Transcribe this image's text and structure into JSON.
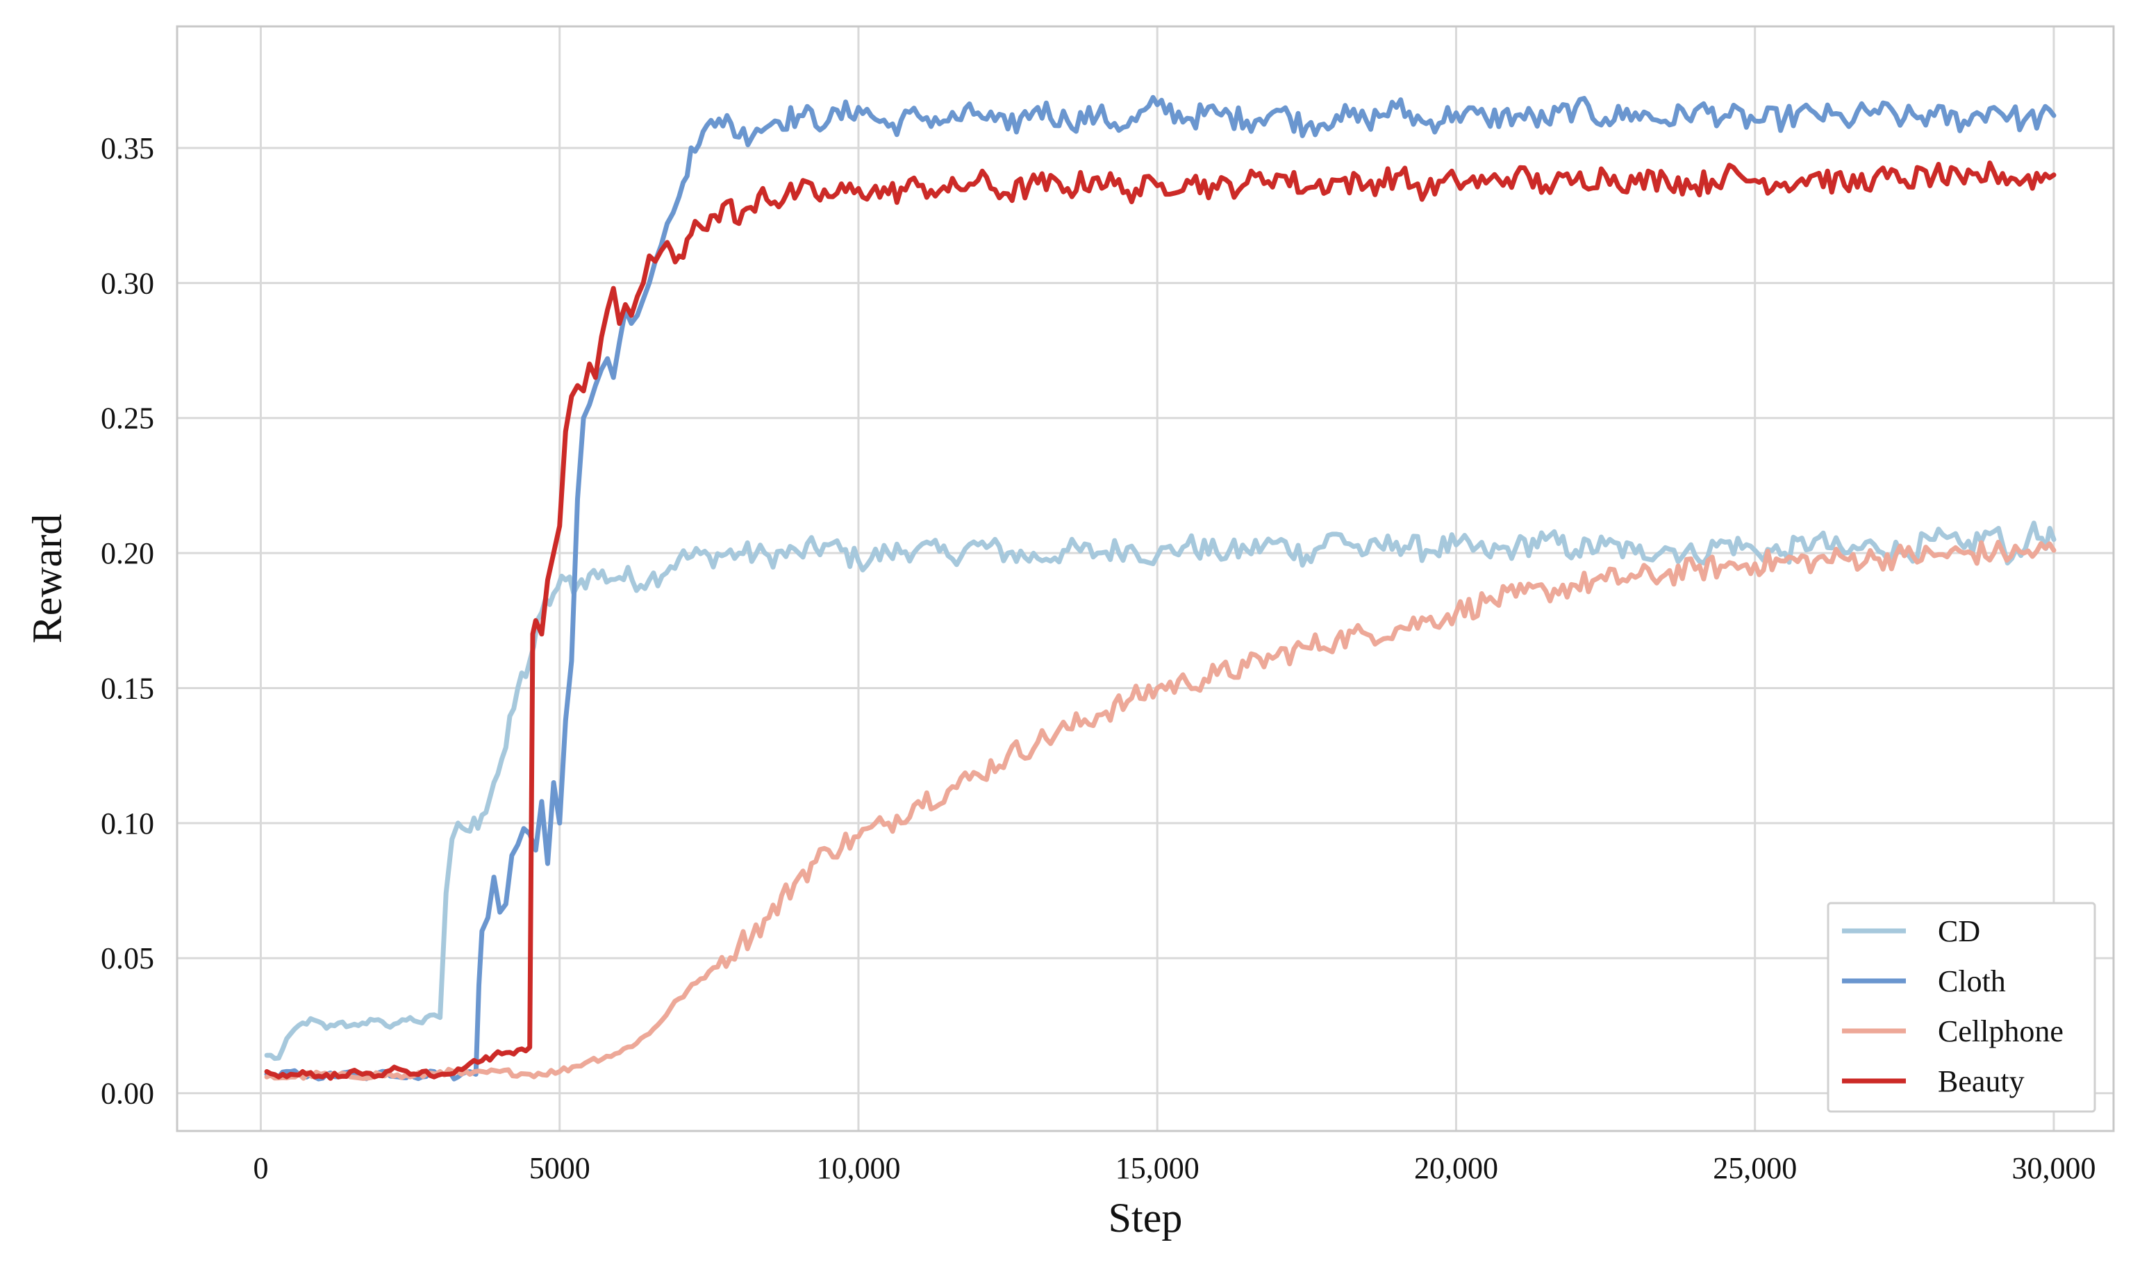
{
  "chart_data": {
    "type": "line",
    "title": "",
    "xlabel": "Step",
    "ylabel": "Reward",
    "xlim": [
      -1400,
      31000
    ],
    "ylim": [
      -0.014,
      0.395
    ],
    "x_ticks": [
      0,
      5000,
      10000,
      15000,
      20000,
      25000,
      30000
    ],
    "x_tick_labels": [
      "0",
      "5000",
      "10,000",
      "15,000",
      "20,000",
      "25,000",
      "30,000"
    ],
    "y_ticks": [
      0.0,
      0.05,
      0.1,
      0.15,
      0.2,
      0.25,
      0.3,
      0.35
    ],
    "y_tick_labels": [
      "0.00",
      "0.05",
      "0.10",
      "0.15",
      "0.20",
      "0.25",
      "0.30",
      "0.35"
    ],
    "grid": true,
    "legend_position": "bottom-right",
    "series": [
      {
        "name": "CD",
        "color": "#a6c8dc",
        "x": [
          100,
          300,
          500,
          700,
          900,
          1100,
          1300,
          1500,
          1700,
          1900,
          2100,
          2300,
          2500,
          2700,
          2900,
          3000,
          3100,
          3200,
          3300,
          3500,
          3700,
          3900,
          4100,
          4300,
          4500,
          4700,
          4900,
          5100,
          5300,
          5500,
          6000,
          6500,
          7000,
          7500,
          8000,
          8500,
          9000,
          9500,
          10000,
          10500,
          11000,
          11500,
          12000,
          12500,
          13000,
          13500,
          14000,
          14500,
          15000,
          15500,
          16000,
          16500,
          17000,
          17500,
          18000,
          18500,
          19000,
          19500,
          20000,
          20500,
          21000,
          21500,
          22000,
          22500,
          23000,
          23500,
          24000,
          24500,
          25000,
          25500,
          26000,
          26500,
          27000,
          27500,
          28000,
          28500,
          29000,
          29300,
          29600,
          30000
        ],
        "values": [
          0.014,
          0.013,
          0.022,
          0.026,
          0.027,
          0.024,
          0.026,
          0.025,
          0.026,
          0.027,
          0.025,
          0.026,
          0.028,
          0.026,
          0.029,
          0.028,
          0.074,
          0.094,
          0.1,
          0.097,
          0.103,
          0.115,
          0.128,
          0.15,
          0.16,
          0.178,
          0.185,
          0.19,
          0.188,
          0.192,
          0.191,
          0.19,
          0.198,
          0.199,
          0.2,
          0.199,
          0.2,
          0.203,
          0.197,
          0.2,
          0.202,
          0.199,
          0.203,
          0.2,
          0.198,
          0.201,
          0.2,
          0.202,
          0.199,
          0.203,
          0.2,
          0.201,
          0.204,
          0.199,
          0.207,
          0.2,
          0.204,
          0.201,
          0.203,
          0.2,
          0.202,
          0.205,
          0.201,
          0.203,
          0.2,
          0.202,
          0.199,
          0.204,
          0.201,
          0.2,
          0.205,
          0.2,
          0.203,
          0.2,
          0.205,
          0.202,
          0.208,
          0.198,
          0.207,
          0.205
        ]
      },
      {
        "name": "Cloth",
        "color": "#6a96cf",
        "x": [
          100,
          300,
          500,
          700,
          900,
          1100,
          1300,
          1500,
          1700,
          1900,
          2100,
          2300,
          2500,
          2700,
          2900,
          3100,
          3300,
          3500,
          3600,
          3650,
          3700,
          3800,
          3900,
          4000,
          4100,
          4200,
          4300,
          4400,
          4500,
          4600,
          4700,
          4800,
          4900,
          5000,
          5100,
          5200,
          5300,
          5400,
          5500,
          5600,
          5700,
          5800,
          5900,
          6000,
          6100,
          6200,
          6300,
          6400,
          6500,
          6600,
          6700,
          6800,
          6900,
          7000,
          7200,
          7400,
          7600,
          7800,
          8000,
          8300,
          8600,
          9000,
          9500,
          10000,
          10500,
          11000,
          11500,
          12000,
          12500,
          13000,
          13500,
          14000,
          14500,
          15000,
          15500,
          16000,
          16500,
          17000,
          17500,
          18000,
          18500,
          19000,
          19500,
          20000,
          20500,
          21000,
          21500,
          22000,
          22500,
          23000,
          23500,
          24000,
          24500,
          25000,
          25500,
          26000,
          26500,
          27000,
          27500,
          28000,
          28500,
          29000,
          29500,
          30000
        ],
        "values": [
          0.007,
          0.006,
          0.008,
          0.007,
          0.006,
          0.007,
          0.006,
          0.008,
          0.006,
          0.007,
          0.008,
          0.006,
          0.007,
          0.006,
          0.008,
          0.007,
          0.006,
          0.008,
          0.007,
          0.04,
          0.06,
          0.065,
          0.08,
          0.067,
          0.07,
          0.088,
          0.092,
          0.098,
          0.096,
          0.09,
          0.108,
          0.085,
          0.115,
          0.1,
          0.138,
          0.16,
          0.22,
          0.25,
          0.255,
          0.262,
          0.268,
          0.272,
          0.265,
          0.278,
          0.29,
          0.285,
          0.288,
          0.294,
          0.3,
          0.308,
          0.314,
          0.322,
          0.326,
          0.332,
          0.35,
          0.356,
          0.358,
          0.362,
          0.354,
          0.357,
          0.36,
          0.362,
          0.36,
          0.365,
          0.358,
          0.362,
          0.36,
          0.363,
          0.357,
          0.365,
          0.36,
          0.362,
          0.358,
          0.366,
          0.361,
          0.363,
          0.36,
          0.364,
          0.358,
          0.362,
          0.36,
          0.365,
          0.359,
          0.363,
          0.361,
          0.362,
          0.36,
          0.365,
          0.361,
          0.363,
          0.36,
          0.364,
          0.362,
          0.36,
          0.361,
          0.363,
          0.36,
          0.364,
          0.361,
          0.362,
          0.36,
          0.365,
          0.36,
          0.362
        ]
      },
      {
        "name": "Cellphone",
        "color": "#eda898",
        "x": [
          100,
          500,
          1000,
          1500,
          2000,
          2500,
          3000,
          3500,
          4000,
          4500,
          5000,
          5500,
          6000,
          6500,
          7000,
          7500,
          8000,
          8500,
          9000,
          9500,
          10000,
          10500,
          11000,
          11500,
          12000,
          12500,
          13000,
          13500,
          14000,
          14500,
          15000,
          15500,
          16000,
          16500,
          17000,
          17500,
          18000,
          18500,
          19000,
          19500,
          20000,
          20500,
          21000,
          21500,
          22000,
          22500,
          23000,
          23500,
          24000,
          24500,
          25000,
          25500,
          26000,
          26500,
          27000,
          27500,
          28000,
          28500,
          29000,
          29500,
          30000
        ],
        "values": [
          0.006,
          0.006,
          0.007,
          0.006,
          0.007,
          0.006,
          0.008,
          0.007,
          0.008,
          0.007,
          0.008,
          0.012,
          0.015,
          0.022,
          0.035,
          0.045,
          0.055,
          0.065,
          0.08,
          0.09,
          0.095,
          0.1,
          0.108,
          0.112,
          0.118,
          0.125,
          0.13,
          0.135,
          0.14,
          0.145,
          0.15,
          0.152,
          0.155,
          0.158,
          0.162,
          0.165,
          0.168,
          0.17,
          0.172,
          0.175,
          0.178,
          0.182,
          0.184,
          0.186,
          0.188,
          0.19,
          0.191,
          0.192,
          0.194,
          0.195,
          0.196,
          0.197,
          0.197,
          0.198,
          0.198,
          0.199,
          0.199,
          0.2,
          0.2,
          0.2,
          0.201
        ]
      },
      {
        "name": "Beauty",
        "color": "#cc2a27",
        "x": [
          100,
          300,
          500,
          700,
          900,
          1100,
          1300,
          1500,
          1700,
          1900,
          2100,
          2300,
          2500,
          2700,
          2900,
          3100,
          3300,
          3500,
          3700,
          3900,
          4100,
          4300,
          4500,
          4550,
          4600,
          4700,
          4800,
          4900,
          5000,
          5100,
          5200,
          5300,
          5400,
          5500,
          5600,
          5700,
          5800,
          5900,
          6000,
          6100,
          6200,
          6300,
          6400,
          6500,
          6600,
          6700,
          6800,
          7000,
          7200,
          7400,
          7600,
          7800,
          8000,
          8200,
          8400,
          8600,
          9000,
          9500,
          10000,
          10500,
          11000,
          11500,
          12000,
          12500,
          13000,
          13500,
          14000,
          14500,
          15000,
          15500,
          16000,
          16500,
          17000,
          17500,
          18000,
          18500,
          19000,
          19500,
          20000,
          20500,
          21000,
          21500,
          22000,
          22500,
          23000,
          23500,
          24000,
          24500,
          25000,
          25500,
          26000,
          26500,
          27000,
          27500,
          28000,
          28500,
          29000,
          29500,
          30000
        ],
        "values": [
          0.008,
          0.006,
          0.007,
          0.008,
          0.006,
          0.007,
          0.006,
          0.008,
          0.007,
          0.006,
          0.008,
          0.009,
          0.007,
          0.008,
          0.006,
          0.007,
          0.009,
          0.011,
          0.012,
          0.014,
          0.015,
          0.016,
          0.017,
          0.17,
          0.175,
          0.17,
          0.19,
          0.2,
          0.21,
          0.245,
          0.258,
          0.262,
          0.26,
          0.27,
          0.265,
          0.28,
          0.29,
          0.298,
          0.285,
          0.292,
          0.288,
          0.295,
          0.3,
          0.31,
          0.308,
          0.312,
          0.315,
          0.31,
          0.318,
          0.32,
          0.325,
          0.33,
          0.322,
          0.328,
          0.335,
          0.33,
          0.334,
          0.332,
          0.335,
          0.333,
          0.336,
          0.334,
          0.338,
          0.333,
          0.337,
          0.335,
          0.339,
          0.334,
          0.336,
          0.338,
          0.335,
          0.337,
          0.34,
          0.335,
          0.338,
          0.336,
          0.34,
          0.334,
          0.338,
          0.337,
          0.34,
          0.336,
          0.338,
          0.34,
          0.337,
          0.339,
          0.336,
          0.34,
          0.338,
          0.337,
          0.34,
          0.336,
          0.339,
          0.338,
          0.34,
          0.337,
          0.341,
          0.338,
          0.34
        ]
      }
    ]
  },
  "legend_entries": [
    "CD",
    "Cloth",
    "Cellphone",
    "Beauty"
  ]
}
